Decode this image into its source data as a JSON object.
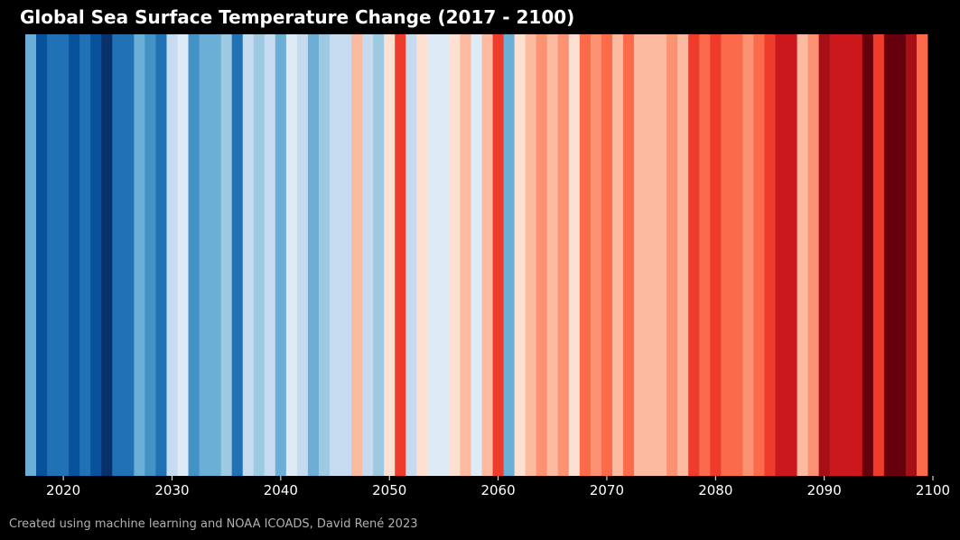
{
  "chart_data": {
    "type": "heatmap",
    "title": "Global Sea Surface Temperature Change (2017 - 2100)",
    "caption": "Created using machine learning and NOAA ICOADS, David René 2023",
    "xlabel": "",
    "ylabel": "",
    "xlim": [
      2016.5,
      2099.5
    ],
    "grid": false,
    "legend": "none",
    "x_ticks": [
      2020,
      2030,
      2040,
      2050,
      2060,
      2070,
      2080,
      2090,
      2100
    ],
    "years": [
      2017,
      2018,
      2019,
      2020,
      2021,
      2022,
      2023,
      2024,
      2025,
      2026,
      2027,
      2028,
      2029,
      2030,
      2031,
      2032,
      2033,
      2034,
      2035,
      2036,
      2037,
      2038,
      2039,
      2040,
      2041,
      2042,
      2043,
      2044,
      2045,
      2046,
      2047,
      2048,
      2049,
      2050,
      2051,
      2052,
      2053,
      2054,
      2055,
      2056,
      2057,
      2058,
      2059,
      2060,
      2061,
      2062,
      2063,
      2064,
      2065,
      2066,
      2067,
      2068,
      2069,
      2070,
      2071,
      2072,
      2073,
      2074,
      2075,
      2076,
      2077,
      2078,
      2079,
      2080,
      2081,
      2082,
      2083,
      2084,
      2085,
      2086,
      2087,
      2088,
      2089,
      2090,
      2091,
      2092,
      2093,
      2094,
      2095,
      2096,
      2097,
      2098,
      2099
    ],
    "colors": [
      "#6baed6",
      "#08519c",
      "#2171b5",
      "#2171b5",
      "#08519c",
      "#2171b5",
      "#08519c",
      "#08306b",
      "#2171b5",
      "#2171b5",
      "#6baed6",
      "#4292c6",
      "#2171b5",
      "#c6dbef",
      "#deebf7",
      "#4292c6",
      "#6baed6",
      "#6baed6",
      "#9ecae1",
      "#2171b5",
      "#c6dbef",
      "#9ecae1",
      "#c6dbef",
      "#6baed6",
      "#deebf7",
      "#c6dbef",
      "#6baed6",
      "#9ecae1",
      "#c6dbef",
      "#c6dbef",
      "#fcbba1",
      "#c6dbef",
      "#9ecae1",
      "#fee0d2",
      "#ef3b2c",
      "#c6dbef",
      "#fee0d2",
      "#deebf7",
      "#deebf7",
      "#fee0d2",
      "#fcbba1",
      "#deebf7",
      "#fcbba1",
      "#ef3b2c",
      "#6baed6",
      "#fee0d2",
      "#fcbba1",
      "#fc9272",
      "#fcbba1",
      "#fc9272",
      "#fee0d2",
      "#fb6a4a",
      "#fc9272",
      "#fb6a4a",
      "#fcbba1",
      "#fb6a4a",
      "#fcbba1",
      "#fcbba1",
      "#fcbba1",
      "#fc9272",
      "#fcbba1",
      "#ef3b2c",
      "#fb6a4a",
      "#ef3b2c",
      "#fb6a4a",
      "#fb6a4a",
      "#fc9272",
      "#fb6a4a",
      "#ef3b2c",
      "#cb181d",
      "#cb181d",
      "#fcbba1",
      "#fc9272",
      "#a50f15",
      "#cb181d",
      "#cb181d",
      "#cb181d",
      "#67000d",
      "#ef3b2c",
      "#67000d",
      "#67000d",
      "#a50f15",
      "#fb6a4a"
    ]
  }
}
